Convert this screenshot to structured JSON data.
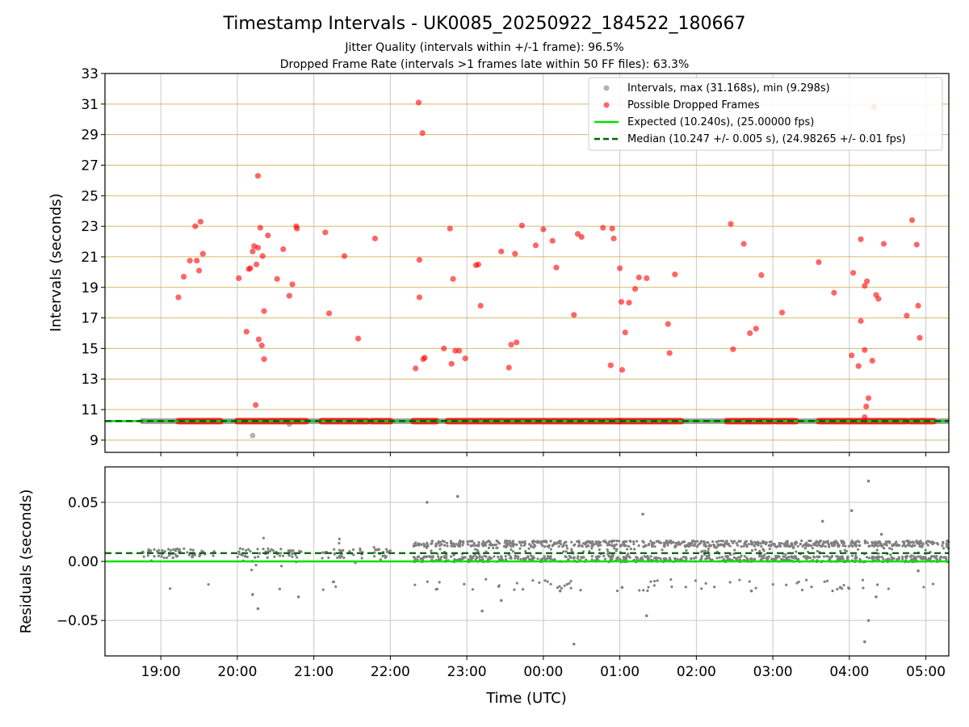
{
  "chart_data": {
    "type": "scatter",
    "title": "Timestamp Intervals - UK0085_20250922_184522_180667",
    "subtitle_1": "Jitter Quality (intervals within +/-1 frame): 96.5%",
    "subtitle_2": "Dropped Frame Rate (intervals >1 frames late within 50 FF files): 63.3%",
    "top_panel": {
      "ylabel": "Intervals (seconds)",
      "ylim": [
        8.2,
        33
      ],
      "yticks": [
        "9",
        "11",
        "13",
        "15",
        "17",
        "19",
        "21",
        "23",
        "25",
        "27",
        "29",
        "31",
        "33"
      ],
      "expected_interval": 10.24,
      "median_interval": 10.247,
      "intervals_series": {
        "name": "Intervals, max (31.168s), min (9.298s)",
        "color": "#808080",
        "points": [
          [
            18.75,
            10.24
          ],
          [
            20.2,
            9.3
          ],
          [
            20.68,
            10.05
          ]
        ]
      },
      "dropped_series": {
        "name": "Possible Dropped Frames",
        "color": "#ff0000",
        "points": [
          [
            19.23,
            18.35
          ],
          [
            19.3,
            19.7
          ],
          [
            19.38,
            20.75
          ],
          [
            19.45,
            23.0
          ],
          [
            19.47,
            20.75
          ],
          [
            19.5,
            20.1
          ],
          [
            19.52,
            23.3
          ],
          [
            19.55,
            21.2
          ],
          [
            20.02,
            19.6
          ],
          [
            20.12,
            16.1
          ],
          [
            20.15,
            20.2
          ],
          [
            20.17,
            20.25
          ],
          [
            20.2,
            21.35
          ],
          [
            20.22,
            21.7
          ],
          [
            20.24,
            11.3
          ],
          [
            20.25,
            20.5
          ],
          [
            20.27,
            26.3
          ],
          [
            20.27,
            21.6
          ],
          [
            20.28,
            15.6
          ],
          [
            20.3,
            22.9
          ],
          [
            20.32,
            15.2
          ],
          [
            20.33,
            21.05
          ],
          [
            20.35,
            17.45
          ],
          [
            20.35,
            14.3
          ],
          [
            20.4,
            22.4
          ],
          [
            20.52,
            19.55
          ],
          [
            20.6,
            21.5
          ],
          [
            20.68,
            18.45
          ],
          [
            20.72,
            19.2
          ],
          [
            20.77,
            23.0
          ],
          [
            20.78,
            22.85
          ],
          [
            21.15,
            22.6
          ],
          [
            21.2,
            17.3
          ],
          [
            21.4,
            21.05
          ],
          [
            21.58,
            15.65
          ],
          [
            21.8,
            22.2
          ],
          [
            22.33,
            13.7
          ],
          [
            22.37,
            31.1
          ],
          [
            22.38,
            20.8
          ],
          [
            22.38,
            18.35
          ],
          [
            22.42,
            29.1
          ],
          [
            22.43,
            14.3
          ],
          [
            22.45,
            14.4
          ],
          [
            22.7,
            15.0
          ],
          [
            22.78,
            22.85
          ],
          [
            22.8,
            14.0
          ],
          [
            22.82,
            19.55
          ],
          [
            22.85,
            14.85
          ],
          [
            22.9,
            14.85
          ],
          [
            22.98,
            14.35
          ],
          [
            23.12,
            20.45
          ],
          [
            23.15,
            20.5
          ],
          [
            23.18,
            17.8
          ],
          [
            23.45,
            21.35
          ],
          [
            23.55,
            13.75
          ],
          [
            23.58,
            15.25
          ],
          [
            23.63,
            21.2
          ],
          [
            23.65,
            15.4
          ],
          [
            23.72,
            23.05
          ],
          [
            23.9,
            21.75
          ],
          [
            24.0,
            22.8
          ],
          [
            24.12,
            22.05
          ],
          [
            24.17,
            20.3
          ],
          [
            24.4,
            17.2
          ],
          [
            24.45,
            22.5
          ],
          [
            24.5,
            22.3
          ],
          [
            24.78,
            22.9
          ],
          [
            24.88,
            13.9
          ],
          [
            24.9,
            22.85
          ],
          [
            24.92,
            22.2
          ],
          [
            25.0,
            20.25
          ],
          [
            25.02,
            18.05
          ],
          [
            25.03,
            13.6
          ],
          [
            25.07,
            16.05
          ],
          [
            25.12,
            18.0
          ],
          [
            25.2,
            18.9
          ],
          [
            25.25,
            19.65
          ],
          [
            25.35,
            19.6
          ],
          [
            25.63,
            16.6
          ],
          [
            25.65,
            14.7
          ],
          [
            25.72,
            19.85
          ],
          [
            26.45,
            23.15
          ],
          [
            26.48,
            14.95
          ],
          [
            26.62,
            21.85
          ],
          [
            26.7,
            16.0
          ],
          [
            26.78,
            16.3
          ],
          [
            26.85,
            19.8
          ],
          [
            27.12,
            17.35
          ],
          [
            27.6,
            20.65
          ],
          [
            27.8,
            18.65
          ],
          [
            28.03,
            14.55
          ],
          [
            28.05,
            19.95
          ],
          [
            28.12,
            13.85
          ],
          [
            28.15,
            16.8
          ],
          [
            28.15,
            22.15
          ],
          [
            28.2,
            19.1
          ],
          [
            28.2,
            14.9
          ],
          [
            28.22,
            11.2
          ],
          [
            28.23,
            19.4
          ],
          [
            28.25,
            11.75
          ],
          [
            28.3,
            14.2
          ],
          [
            28.32,
            30.8
          ],
          [
            28.35,
            18.5
          ],
          [
            28.38,
            18.25
          ],
          [
            28.45,
            21.85
          ],
          [
            28.75,
            17.15
          ],
          [
            28.82,
            23.4
          ],
          [
            28.88,
            21.8
          ],
          [
            28.9,
            17.8
          ],
          [
            28.92,
            15.7
          ],
          [
            28.2,
            10.5
          ]
        ]
      },
      "dropped_baseline_segments": [
        [
          19.23,
          19.78
        ],
        [
          20.0,
          20.9
        ],
        [
          21.1,
          21.7
        ],
        [
          21.75,
          22.0
        ],
        [
          22.3,
          22.6
        ],
        [
          22.75,
          25.0
        ],
        [
          25.0,
          25.8
        ],
        [
          26.4,
          27.0
        ],
        [
          27.05,
          27.3
        ],
        [
          27.6,
          28.75
        ],
        [
          28.8,
          29.1
        ]
      ],
      "legend": {
        "intervals": "Intervals, max (31.168s), min (9.298s)",
        "dropped": "Possible Dropped Frames",
        "expected": "Expected (10.240s), (25.00000 fps)",
        "median": "Median (10.247 +/- 0.005 s), (24.98265 +/- 0.01 fps)"
      }
    },
    "bottom_panel": {
      "ylabel": "Residuals (seconds)",
      "ylim": [
        -0.08,
        0.08
      ],
      "yticks": [
        "0.05",
        "0.00",
        "−0.05"
      ],
      "expected_residual": 0.0,
      "median_residual": 0.007,
      "outliers": [
        [
          22.48,
          0.05
        ],
        [
          22.88,
          0.055
        ],
        [
          23.2,
          -0.042
        ],
        [
          24.4,
          -0.07
        ],
        [
          25.35,
          -0.046
        ],
        [
          25.3,
          0.04
        ],
        [
          27.65,
          0.034
        ],
        [
          28.03,
          0.043
        ],
        [
          28.25,
          0.068
        ],
        [
          28.2,
          -0.068
        ],
        [
          28.25,
          -0.05
        ],
        [
          28.42,
          0.023
        ],
        [
          20.27,
          -0.04
        ],
        [
          20.2,
          -0.028
        ],
        [
          20.8,
          -0.03
        ],
        [
          23.45,
          -0.033
        ],
        [
          24.22,
          -0.025
        ],
        [
          25.03,
          -0.022
        ],
        [
          26.72,
          -0.025
        ],
        [
          27.88,
          -0.022
        ],
        [
          28.35,
          -0.03
        ],
        [
          28.9,
          -0.008
        ]
      ]
    },
    "xaxis": {
      "label": "Time (UTC)",
      "xlim": [
        18.27,
        29.3
      ],
      "ticks": [
        "19:00",
        "20:00",
        "21:00",
        "22:00",
        "23:00",
        "00:00",
        "01:00",
        "02:00",
        "03:00",
        "04:00",
        "05:00"
      ],
      "tick_values": [
        19,
        20,
        21,
        22,
        23,
        24,
        25,
        26,
        27,
        28,
        29
      ]
    },
    "colors": {
      "expected": "#00e000",
      "median": "#006400",
      "dropped": "#ff0000",
      "intervals": "#808080",
      "hgrid_top": "#d4b96a",
      "grid": "#c8c8c8"
    }
  }
}
